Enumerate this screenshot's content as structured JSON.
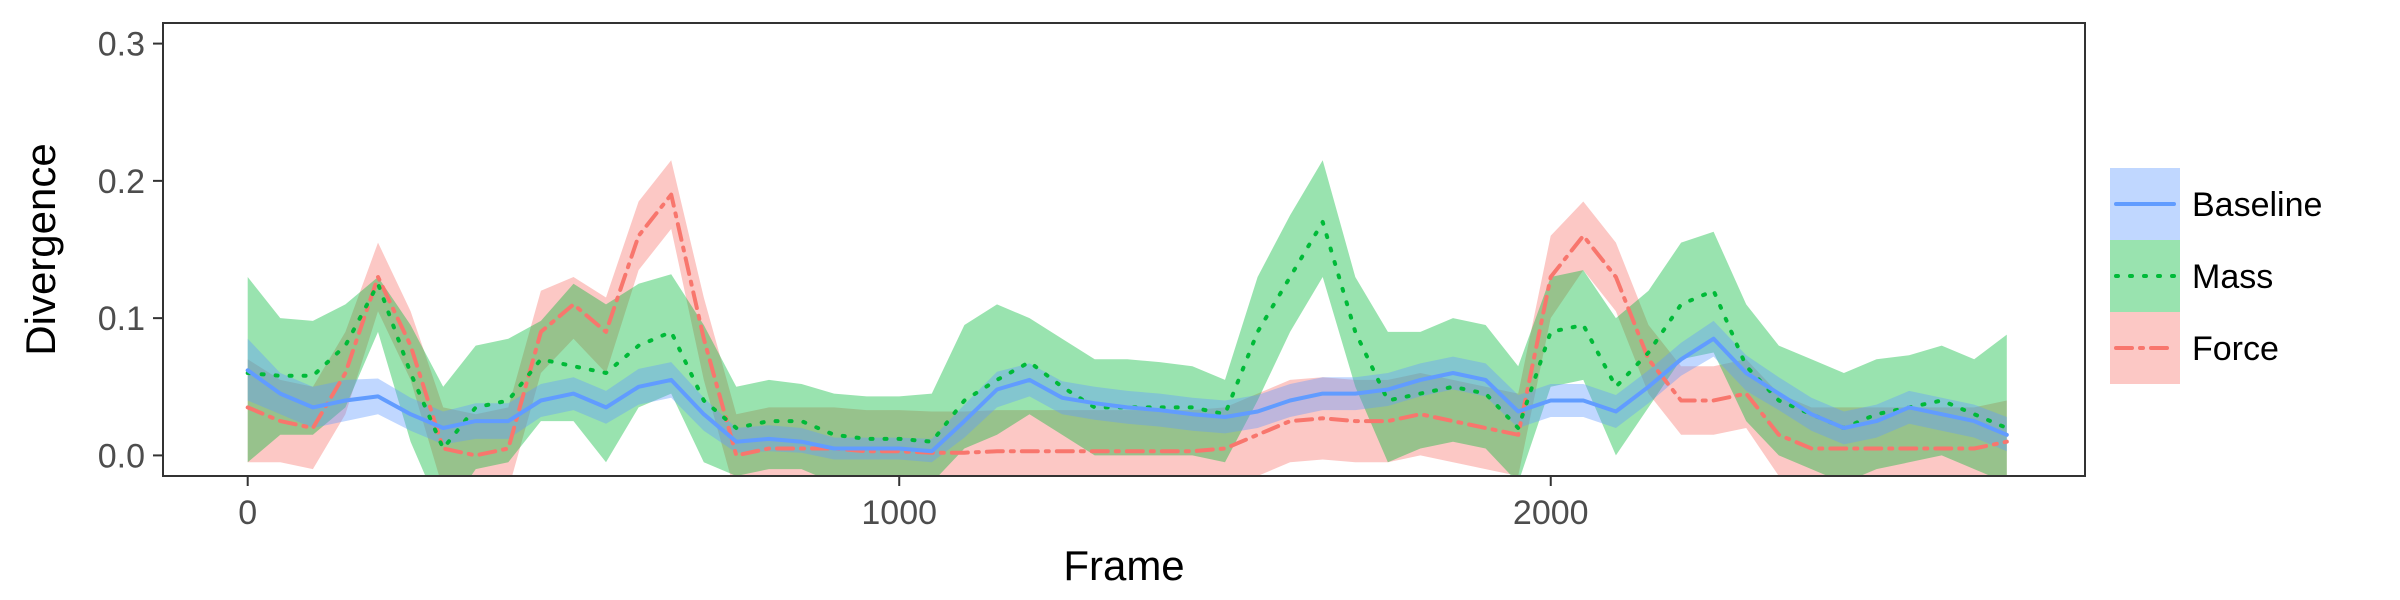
{
  "chart_data": {
    "type": "line",
    "xlabel": "Frame",
    "ylabel": "Divergence",
    "xlim": [
      -130,
      2820
    ],
    "ylim": [
      -0.015,
      0.315
    ],
    "x_ticks": [
      0,
      1000,
      2000
    ],
    "x_tick_labels": [
      "0",
      "1000",
      "2000"
    ],
    "y_ticks": [
      0.0,
      0.1,
      0.2,
      0.3
    ],
    "y_tick_labels": [
      "0.0",
      "0.1",
      "0.2",
      "0.3"
    ],
    "grid": false,
    "legend_position": "right",
    "x": [
      0,
      50,
      100,
      150,
      200,
      250,
      300,
      350,
      400,
      450,
      500,
      550,
      600,
      650,
      700,
      750,
      800,
      850,
      900,
      950,
      1000,
      1050,
      1100,
      1150,
      1200,
      1250,
      1300,
      1350,
      1400,
      1450,
      1500,
      1550,
      1600,
      1650,
      1700,
      1750,
      1800,
      1850,
      1900,
      1950,
      2000,
      2050,
      2100,
      2150,
      2200,
      2250,
      2300,
      2350,
      2400,
      2450,
      2500,
      2550,
      2600,
      2650,
      2700
    ],
    "series": [
      {
        "name": "Baseline",
        "color": "#619CFF",
        "fill": "#619CFF",
        "line_style": "solid",
        "y": [
          0.062,
          0.045,
          0.035,
          0.04,
          0.043,
          0.03,
          0.02,
          0.025,
          0.025,
          0.04,
          0.045,
          0.035,
          0.05,
          0.055,
          0.03,
          0.01,
          0.012,
          0.01,
          0.005,
          0.005,
          0.005,
          0.003,
          0.025,
          0.048,
          0.055,
          0.042,
          0.038,
          0.035,
          0.033,
          0.03,
          0.028,
          0.032,
          0.04,
          0.045,
          0.045,
          0.048,
          0.055,
          0.06,
          0.055,
          0.032,
          0.04,
          0.04,
          0.032,
          0.05,
          0.07,
          0.085,
          0.06,
          0.045,
          0.03,
          0.02,
          0.025,
          0.035,
          0.03,
          0.025,
          0.015
        ],
        "lower": [
          0.04,
          0.03,
          0.02,
          0.025,
          0.03,
          0.018,
          0.008,
          0.012,
          0.012,
          0.028,
          0.033,
          0.023,
          0.037,
          0.042,
          0.018,
          0.002,
          0.003,
          0.002,
          -0.003,
          -0.003,
          -0.003,
          -0.005,
          0.013,
          0.035,
          0.043,
          0.03,
          0.026,
          0.023,
          0.021,
          0.018,
          0.016,
          0.02,
          0.028,
          0.033,
          0.033,
          0.036,
          0.043,
          0.048,
          0.043,
          0.02,
          0.028,
          0.028,
          0.02,
          0.038,
          0.058,
          0.072,
          0.047,
          0.033,
          0.018,
          0.008,
          0.013,
          0.023,
          0.018,
          0.013,
          0.003
        ],
        "upper": [
          0.085,
          0.06,
          0.05,
          0.055,
          0.056,
          0.042,
          0.032,
          0.038,
          0.038,
          0.052,
          0.057,
          0.047,
          0.063,
          0.068,
          0.042,
          0.02,
          0.022,
          0.02,
          0.013,
          0.013,
          0.013,
          0.012,
          0.037,
          0.061,
          0.067,
          0.054,
          0.05,
          0.047,
          0.045,
          0.042,
          0.04,
          0.044,
          0.052,
          0.057,
          0.057,
          0.06,
          0.067,
          0.072,
          0.067,
          0.044,
          0.052,
          0.052,
          0.044,
          0.062,
          0.082,
          0.098,
          0.073,
          0.057,
          0.042,
          0.032,
          0.037,
          0.047,
          0.042,
          0.037,
          0.028
        ]
      },
      {
        "name": "Mass",
        "color": "#00BA38",
        "fill": "#00BA38",
        "line_style": "dotted",
        "y": [
          0.06,
          0.058,
          0.058,
          0.08,
          0.125,
          0.06,
          0.005,
          0.035,
          0.04,
          0.07,
          0.065,
          0.06,
          0.08,
          0.09,
          0.04,
          0.02,
          0.025,
          0.025,
          0.015,
          0.012,
          0.012,
          0.01,
          0.04,
          0.055,
          0.068,
          0.05,
          0.035,
          0.035,
          0.035,
          0.035,
          0.03,
          0.09,
          0.13,
          0.17,
          0.09,
          0.04,
          0.045,
          0.05,
          0.045,
          0.02,
          0.09,
          0.095,
          0.05,
          0.075,
          0.11,
          0.12,
          0.065,
          0.04,
          0.03,
          0.02,
          0.03,
          0.035,
          0.04,
          0.03,
          0.02
        ],
        "lower": [
          -0.005,
          0.015,
          0.015,
          0.035,
          0.09,
          0.01,
          -0.045,
          -0.01,
          -0.005,
          0.025,
          0.025,
          -0.005,
          0.035,
          0.045,
          -0.005,
          -0.015,
          -0.01,
          -0.01,
          -0.02,
          -0.02,
          -0.02,
          -0.02,
          0.005,
          0.015,
          0.03,
          0.015,
          0.0,
          0.0,
          0.0,
          0.0,
          -0.005,
          0.04,
          0.09,
          0.13,
          0.05,
          -0.005,
          0.005,
          0.01,
          0.005,
          -0.02,
          0.05,
          0.055,
          0.0,
          0.035,
          0.07,
          0.075,
          0.025,
          0.0,
          -0.01,
          -0.02,
          -0.01,
          -0.005,
          0.0,
          -0.01,
          -0.02
        ],
        "upper": [
          0.13,
          0.1,
          0.098,
          0.11,
          0.13,
          0.095,
          0.05,
          0.08,
          0.085,
          0.098,
          0.125,
          0.11,
          0.125,
          0.132,
          0.095,
          0.05,
          0.055,
          0.052,
          0.045,
          0.043,
          0.043,
          0.045,
          0.095,
          0.11,
          0.1,
          0.085,
          0.07,
          0.07,
          0.068,
          0.065,
          0.055,
          0.13,
          0.175,
          0.215,
          0.13,
          0.09,
          0.09,
          0.1,
          0.095,
          0.065,
          0.13,
          0.135,
          0.1,
          0.12,
          0.155,
          0.163,
          0.11,
          0.08,
          0.07,
          0.06,
          0.07,
          0.073,
          0.08,
          0.07,
          0.088
        ]
      },
      {
        "name": "Force",
        "color": "#F8766D",
        "fill": "#F8766D",
        "line_style": "dashdot",
        "y": [
          0.035,
          0.025,
          0.02,
          0.06,
          0.13,
          0.08,
          0.005,
          0.0,
          0.005,
          0.09,
          0.11,
          0.09,
          0.16,
          0.19,
          0.085,
          0.0,
          0.005,
          0.005,
          0.005,
          0.003,
          0.003,
          0.002,
          0.002,
          0.003,
          0.003,
          0.003,
          0.003,
          0.003,
          0.003,
          0.003,
          0.005,
          0.015,
          0.025,
          0.027,
          0.025,
          0.025,
          0.03,
          0.025,
          0.02,
          0.015,
          0.13,
          0.16,
          0.13,
          0.07,
          0.04,
          0.04,
          0.045,
          0.015,
          0.005,
          0.005,
          0.005,
          0.005,
          0.005,
          0.005,
          0.01
        ],
        "lower": [
          -0.005,
          -0.005,
          -0.01,
          0.03,
          0.105,
          0.055,
          -0.025,
          -0.03,
          -0.025,
          0.06,
          0.085,
          0.06,
          0.135,
          0.165,
          0.055,
          -0.03,
          -0.025,
          -0.025,
          -0.025,
          -0.027,
          -0.027,
          -0.028,
          -0.028,
          -0.027,
          -0.027,
          -0.027,
          -0.027,
          -0.027,
          -0.027,
          -0.027,
          -0.025,
          -0.015,
          -0.005,
          -0.003,
          -0.005,
          -0.005,
          0.0,
          -0.005,
          -0.01,
          -0.015,
          0.1,
          0.135,
          0.105,
          0.045,
          0.015,
          0.015,
          0.02,
          -0.015,
          -0.025,
          -0.025,
          -0.025,
          -0.025,
          -0.025,
          -0.025,
          -0.02
        ],
        "upper": [
          0.07,
          0.055,
          0.05,
          0.09,
          0.155,
          0.105,
          0.035,
          0.03,
          0.035,
          0.12,
          0.13,
          0.115,
          0.185,
          0.215,
          0.115,
          0.03,
          0.035,
          0.035,
          0.035,
          0.033,
          0.033,
          0.032,
          0.032,
          0.033,
          0.033,
          0.033,
          0.033,
          0.033,
          0.033,
          0.033,
          0.035,
          0.045,
          0.055,
          0.057,
          0.055,
          0.055,
          0.06,
          0.055,
          0.05,
          0.045,
          0.16,
          0.185,
          0.155,
          0.095,
          0.065,
          0.065,
          0.07,
          0.045,
          0.035,
          0.035,
          0.035,
          0.035,
          0.035,
          0.035,
          0.04
        ]
      }
    ]
  }
}
